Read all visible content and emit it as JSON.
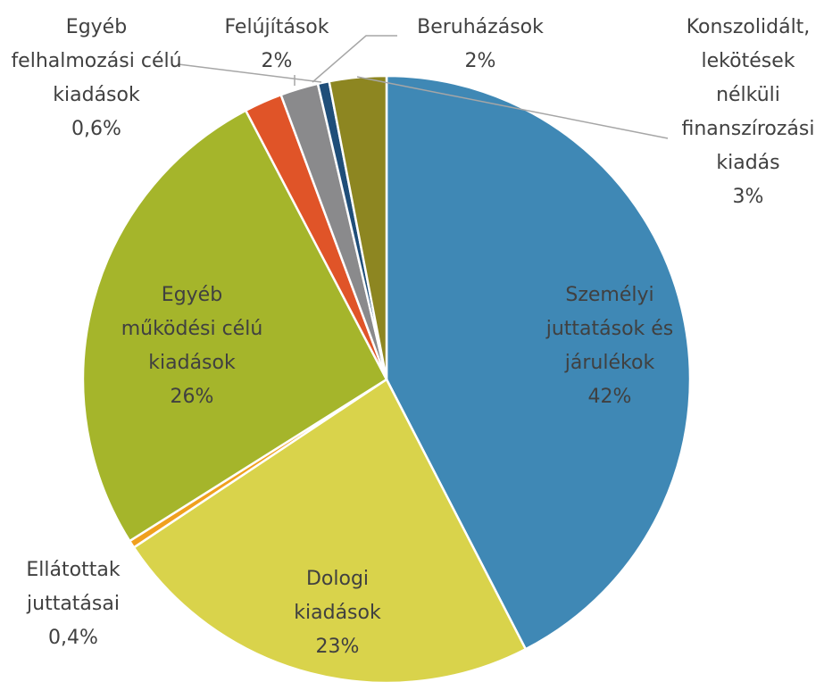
{
  "chart_data": {
    "type": "pie",
    "categories": [
      "Személyi juttatások és járulékok",
      "Dologi kiadások",
      "Ellátottak juttatásai",
      "Egyéb működési célú kiadások",
      "Beruházások",
      "Felújítások",
      "Egyéb felhalmozási célú kiadások",
      "Konszolidált, lekötések nélküli finanszírozási kiadás"
    ],
    "values": [
      42,
      23,
      0.4,
      26,
      2,
      2,
      0.6,
      3
    ],
    "value_labels": [
      "42%",
      "23%",
      "0,4%",
      "26%",
      "2%",
      "2%",
      "0,6%",
      "3%"
    ],
    "colors": [
      "#3f88b5",
      "#d9d34b",
      "#f0a01e",
      "#a5b52b",
      "#e05428",
      "#8a8a8c",
      "#1f4e79",
      "#8d8621"
    ]
  }
}
